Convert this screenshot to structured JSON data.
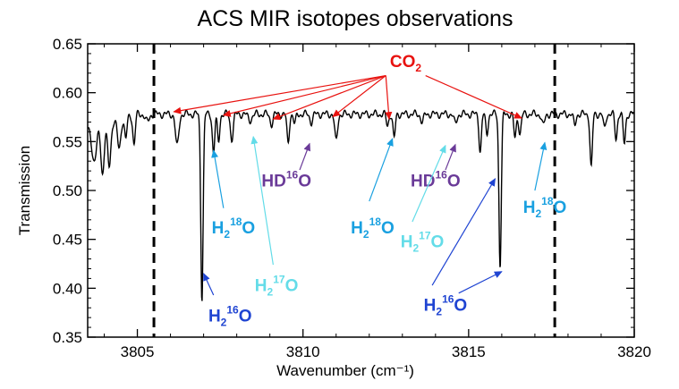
{
  "colors": {
    "co2": "#e8120f",
    "hdo": "#6a3a98",
    "h218o": "#19a0e0",
    "h217o": "#63dce8",
    "h216o": "#1f44d2",
    "spectrum": "#000000"
  },
  "chart_data": {
    "type": "line",
    "title": "ACS MIR isotopes observations",
    "xlabel": "Wavenumber (cm⁻¹)",
    "ylabel": "Transmission",
    "xlim": [
      3803.5,
      3820
    ],
    "ylim": [
      0.35,
      0.65
    ],
    "xticks": [
      3805,
      3810,
      3815,
      3820
    ],
    "xtick_labels": [
      "3805",
      "3810",
      "3815",
      "3820"
    ],
    "yticks": [
      0.35,
      0.4,
      0.45,
      0.5,
      0.55,
      0.6,
      0.65
    ],
    "ytick_labels": [
      "0.35",
      "0.40",
      "0.45",
      "0.50",
      "0.55",
      "0.60",
      "0.65"
    ],
    "vertical_dashed_lines": [
      3805.5,
      3817.6
    ],
    "spectrum_continuum": 0.578,
    "spectrum_absorption_lines": [
      {
        "x": 3803.7,
        "depth": 0.035,
        "width": 0.1
      },
      {
        "x": 3803.95,
        "depth": 0.05,
        "width": 0.07
      },
      {
        "x": 3804.15,
        "depth": 0.045,
        "width": 0.07
      },
      {
        "x": 3804.45,
        "depth": 0.03,
        "width": 0.07
      },
      {
        "x": 3804.65,
        "depth": 0.022,
        "width": 0.05
      },
      {
        "x": 3804.9,
        "depth": 0.03,
        "width": 0.05
      },
      {
        "x": 3805.3,
        "depth": 0.008,
        "width": 0.08
      },
      {
        "x": 3806.2,
        "depth": 0.033,
        "width": 0.07
      },
      {
        "x": 3806.95,
        "depth": 0.188,
        "width": 0.05
      },
      {
        "x": 3807.3,
        "depth": 0.04,
        "width": 0.05
      },
      {
        "x": 3807.45,
        "depth": 0.028,
        "width": 0.05
      },
      {
        "x": 3807.85,
        "depth": 0.025,
        "width": 0.06
      },
      {
        "x": 3808.4,
        "depth": 0.006,
        "width": 0.08
      },
      {
        "x": 3809.05,
        "depth": 0.01,
        "width": 0.06
      },
      {
        "x": 3809.55,
        "depth": 0.03,
        "width": 0.05
      },
      {
        "x": 3809.75,
        "depth": 0.01,
        "width": 0.05
      },
      {
        "x": 3810.25,
        "depth": 0.008,
        "width": 0.06
      },
      {
        "x": 3811.0,
        "depth": 0.028,
        "width": 0.06
      },
      {
        "x": 3812.55,
        "depth": 0.012,
        "width": 0.05
      },
      {
        "x": 3812.75,
        "depth": 0.025,
        "width": 0.05
      },
      {
        "x": 3813.6,
        "depth": 0.008,
        "width": 0.06
      },
      {
        "x": 3814.6,
        "depth": 0.01,
        "width": 0.06
      },
      {
        "x": 3815.35,
        "depth": 0.038,
        "width": 0.05
      },
      {
        "x": 3815.55,
        "depth": 0.02,
        "width": 0.05
      },
      {
        "x": 3815.95,
        "depth": 0.155,
        "width": 0.05
      },
      {
        "x": 3816.4,
        "depth": 0.025,
        "width": 0.05
      },
      {
        "x": 3816.55,
        "depth": 0.02,
        "width": 0.05
      },
      {
        "x": 3817.25,
        "depth": 0.012,
        "width": 0.06
      },
      {
        "x": 3818.2,
        "depth": 0.012,
        "width": 0.05
      },
      {
        "x": 3818.7,
        "depth": 0.055,
        "width": 0.05
      },
      {
        "x": 3819.1,
        "depth": 0.015,
        "width": 0.05
      },
      {
        "x": 3819.45,
        "depth": 0.025,
        "width": 0.05
      },
      {
        "x": 3819.7,
        "depth": 0.03,
        "width": 0.05
      }
    ],
    "annotations": [
      {
        "id": "co2",
        "species": "CO",
        "sub": "2",
        "sup": "",
        "after": "",
        "color": "co2",
        "label_x": 3813.1,
        "label_y": 0.626,
        "arrows": [
          {
            "from_x": 3812.5,
            "from_y": 0.6175,
            "to_x": 3806.1,
            "to_y": 0.5805
          },
          {
            "from_x": 3812.5,
            "from_y": 0.6175,
            "to_x": 3807.6,
            "to_y": 0.577
          },
          {
            "from_x": 3812.5,
            "from_y": 0.6175,
            "to_x": 3809.1,
            "to_y": 0.573
          },
          {
            "from_x": 3812.5,
            "from_y": 0.6175,
            "to_x": 3810.9,
            "to_y": 0.5755
          },
          {
            "from_x": 3812.5,
            "from_y": 0.6175,
            "to_x": 3812.6,
            "to_y": 0.573
          },
          {
            "from_x": 3813.7,
            "from_y": 0.6175,
            "to_x": 3816.6,
            "to_y": 0.574
          }
        ]
      },
      {
        "id": "hdo-left",
        "species": "HD",
        "sub": "",
        "sup": "16",
        "after": "O",
        "color": "hdo",
        "label_x": 3809.5,
        "label_y": 0.504,
        "arrows": [
          {
            "from_x": 3809.9,
            "from_y": 0.521,
            "to_x": 3810.2,
            "to_y": 0.548
          }
        ]
      },
      {
        "id": "hdo-right",
        "species": "HD",
        "sub": "",
        "sup": "16",
        "after": "O",
        "color": "hdo",
        "label_x": 3814.0,
        "label_y": 0.504,
        "arrows": [
          {
            "from_x": 3814.3,
            "from_y": 0.521,
            "to_x": 3814.6,
            "to_y": 0.547
          }
        ]
      },
      {
        "id": "h218o-a",
        "species": "H",
        "sub": "2",
        "sup": "18",
        "after": "O",
        "color": "h218o",
        "label_x": 3807.9,
        "label_y": 0.456,
        "arrows": [
          {
            "from_x": 3807.6,
            "from_y": 0.482,
            "to_x": 3807.3,
            "to_y": 0.541
          }
        ]
      },
      {
        "id": "h218o-b",
        "species": "H",
        "sub": "2",
        "sup": "18",
        "after": "O",
        "color": "h218o",
        "label_x": 3812.1,
        "label_y": 0.456,
        "arrows": [
          {
            "from_x": 3812.0,
            "from_y": 0.489,
            "to_x": 3812.7,
            "to_y": 0.553
          }
        ]
      },
      {
        "id": "h218o-c",
        "species": "H",
        "sub": "2",
        "sup": "18",
        "after": "O",
        "color": "h218o",
        "label_x": 3817.3,
        "label_y": 0.477,
        "arrows": [
          {
            "from_x": 3817.0,
            "from_y": 0.5,
            "to_x": 3817.3,
            "to_y": 0.549
          }
        ]
      },
      {
        "id": "h217o-left",
        "species": "H",
        "sub": "2",
        "sup": "17",
        "after": "O",
        "color": "h217o",
        "label_x": 3809.2,
        "label_y": 0.397,
        "arrows": [
          {
            "from_x": 3809.1,
            "from_y": 0.424,
            "to_x": 3808.5,
            "to_y": 0.555
          }
        ]
      },
      {
        "id": "h217o-right",
        "species": "H",
        "sub": "2",
        "sup": "17",
        "after": "O",
        "color": "h217o",
        "label_x": 3813.6,
        "label_y": 0.442,
        "arrows": [
          {
            "from_x": 3813.3,
            "from_y": 0.468,
            "to_x": 3814.3,
            "to_y": 0.546
          }
        ]
      },
      {
        "id": "h216o-left",
        "species": "H",
        "sub": "2",
        "sup": "16",
        "after": "O",
        "color": "h216o",
        "label_x": 3807.8,
        "label_y": 0.366,
        "arrows": [
          {
            "from_x": 3807.3,
            "from_y": 0.393,
            "to_x": 3807.0,
            "to_y": 0.415
          }
        ]
      },
      {
        "id": "h216o-right",
        "species": "H",
        "sub": "2",
        "sup": "16",
        "after": "O",
        "color": "h216o",
        "label_x": 3814.3,
        "label_y": 0.377,
        "arrows": [
          {
            "from_x": 3813.9,
            "from_y": 0.403,
            "to_x": 3815.8,
            "to_y": 0.512
          },
          {
            "from_x": 3814.7,
            "from_y": 0.395,
            "to_x": 3816.0,
            "to_y": 0.417
          }
        ]
      }
    ]
  }
}
